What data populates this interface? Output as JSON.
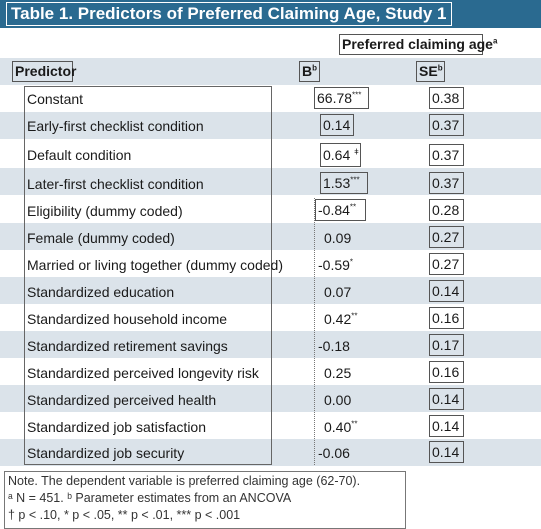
{
  "table": {
    "title": "Table 1. Predictors of Preferred Claiming Age, Study 1",
    "group_header": "Preferred claiming age",
    "group_header_sup": "a",
    "col_predictor": "Predictor",
    "col_b": "B",
    "col_b_sup": "b",
    "col_se": "SE",
    "col_se_sup": "b",
    "rows": [
      {
        "predictor": "Constant",
        "b": "66.78",
        "sig": "***",
        "se": "0.38"
      },
      {
        "predictor": "Early-first checklist condition",
        "b": "0.14",
        "sig": "",
        "se": "0.37"
      },
      {
        "predictor": "Default condition",
        "b": "0.64",
        "sig": "ǂ",
        "se": "0.37"
      },
      {
        "predictor": "Later-first checklist condition",
        "b": "1.53",
        "sig": "***",
        "se": "0.37"
      },
      {
        "predictor": "Eligibility (dummy coded)",
        "b": "-0.84",
        "sig": "**",
        "se": "0.28"
      },
      {
        "predictor": "Female (dummy coded)",
        "b": "0.09",
        "sig": "",
        "se": "0.27"
      },
      {
        "predictor": "Married or living together (dummy coded)",
        "b": "-0.59",
        "sig": "*",
        "se": "0.27"
      },
      {
        "predictor": "Standardized education",
        "b": "0.07",
        "sig": "",
        "se": "0.14"
      },
      {
        "predictor": "Standardized household income",
        "b": "0.42",
        "sig": "**",
        "se": "0.16"
      },
      {
        "predictor": "Standardized retirement savings",
        "b": "-0.18",
        "sig": "",
        "se": "0.17"
      },
      {
        "predictor": "Standardized perceived longevity risk",
        "b": "0.25",
        "sig": "",
        "se": "0.16"
      },
      {
        "predictor": "Standardized perceived health",
        "b": "0.00",
        "sig": "",
        "se": "0.14"
      },
      {
        "predictor": "Standardized job satisfaction",
        "b": "0.40",
        "sig": "**",
        "se": "0.14"
      },
      {
        "predictor": "Standardized job security",
        "b": "-0.06",
        "sig": "",
        "se": "0.14"
      }
    ],
    "notes": [
      "Note. The dependent variable is preferred claiming age (62-70).",
      "ᵃ N = 451. ᵇ Parameter estimates from an ANCOVA",
      "† p < .10, * p < .05, ** p < .01, *** p < .001"
    ]
  }
}
